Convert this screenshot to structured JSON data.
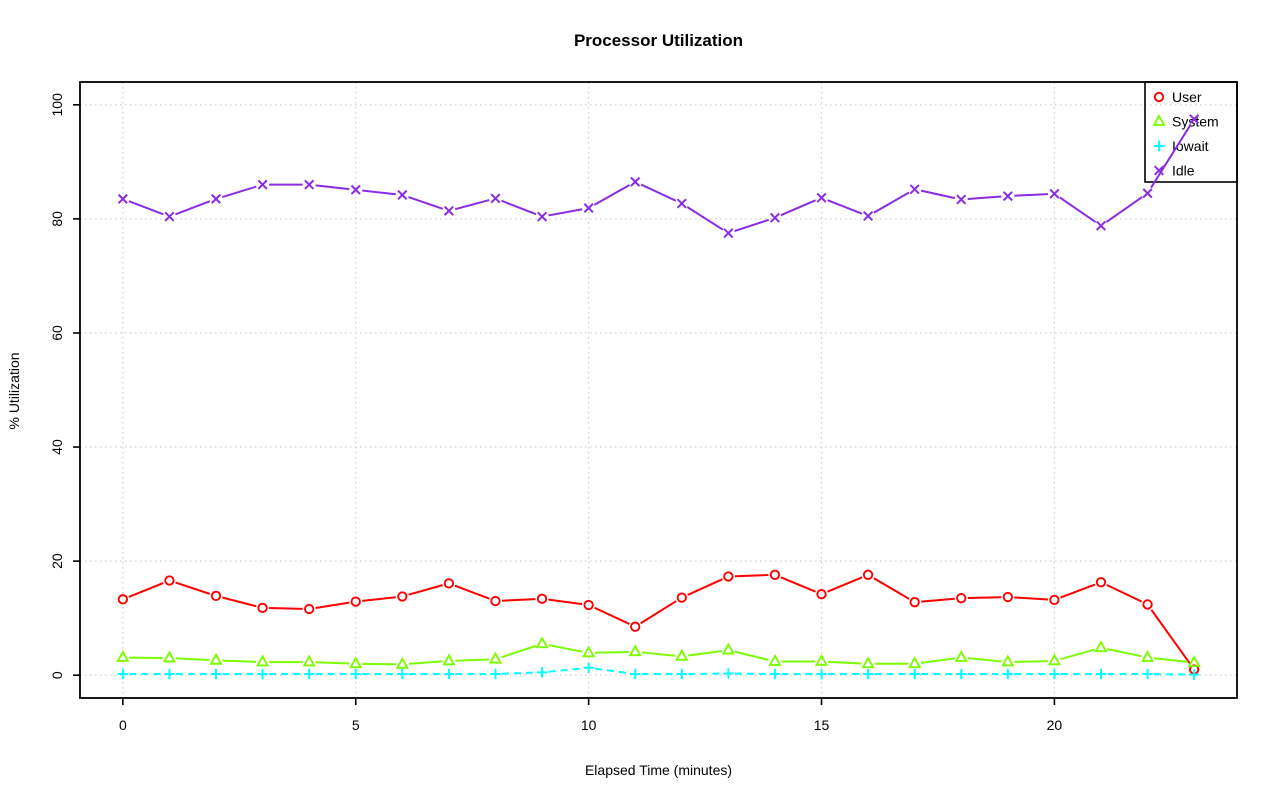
{
  "chart_data": {
    "type": "line",
    "title": "Processor Utilization",
    "xlabel": "Elapsed Time (minutes)",
    "ylabel": "% Utilization",
    "x": [
      0,
      1,
      2,
      3,
      4,
      5,
      6,
      7,
      8,
      9,
      10,
      11,
      12,
      13,
      14,
      15,
      16,
      17,
      18,
      19,
      20,
      21,
      22,
      23
    ],
    "series": [
      {
        "name": "User",
        "color": "#ff0000",
        "marker": "circle",
        "line": "solid",
        "values": [
          13.3,
          16.6,
          13.9,
          11.8,
          11.6,
          12.9,
          13.8,
          16.1,
          13.0,
          13.4,
          12.3,
          8.5,
          13.6,
          17.3,
          17.6,
          14.2,
          17.6,
          12.8,
          13.5,
          13.7,
          13.2,
          16.3,
          12.4,
          1.0
        ]
      },
      {
        "name": "System",
        "color": "#7cfc00",
        "marker": "triangle",
        "line": "solid",
        "values": [
          3.1,
          3.0,
          2.6,
          2.3,
          2.3,
          2.0,
          1.9,
          2.5,
          2.8,
          5.5,
          3.9,
          4.1,
          3.3,
          4.4,
          2.4,
          2.4,
          2.0,
          2.0,
          3.1,
          2.3,
          2.5,
          4.8,
          3.1,
          2.2
        ]
      },
      {
        "name": "Iowait",
        "color": "#00ffff",
        "marker": "plus",
        "line": "dashed",
        "values": [
          0.2,
          0.2,
          0.2,
          0.2,
          0.2,
          0.2,
          0.2,
          0.2,
          0.2,
          0.5,
          1.3,
          0.2,
          0.2,
          0.3,
          0.2,
          0.2,
          0.2,
          0.2,
          0.2,
          0.2,
          0.2,
          0.2,
          0.2,
          0.1
        ]
      },
      {
        "name": "Idle",
        "color": "#8a2be2",
        "marker": "x",
        "line": "solid",
        "values": [
          83.5,
          80.4,
          83.5,
          86.0,
          86.0,
          85.1,
          84.2,
          81.4,
          83.6,
          80.4,
          81.9,
          86.5,
          82.7,
          77.5,
          80.2,
          83.7,
          80.5,
          85.2,
          83.4,
          84.0,
          84.4,
          78.8,
          84.5,
          97.5
        ]
      }
    ],
    "xticks": [
      0,
      5,
      10,
      15,
      20
    ],
    "yticks": [
      0,
      20,
      40,
      60,
      80,
      100
    ],
    "xtick_labels": [
      "0",
      "5",
      "10",
      "15",
      "20"
    ],
    "ytick_labels": [
      "0",
      "20",
      "40",
      "60",
      "80",
      "100"
    ],
    "xlim": [
      -0.92,
      23.92
    ],
    "ylim": [
      -4,
      104
    ],
    "grid": true,
    "grid_color": "#cfcfcf",
    "axis_color": "#000000",
    "legend_position": "top-right",
    "legend_labels": [
      "User",
      "System",
      "Iowait",
      "Idle"
    ]
  }
}
